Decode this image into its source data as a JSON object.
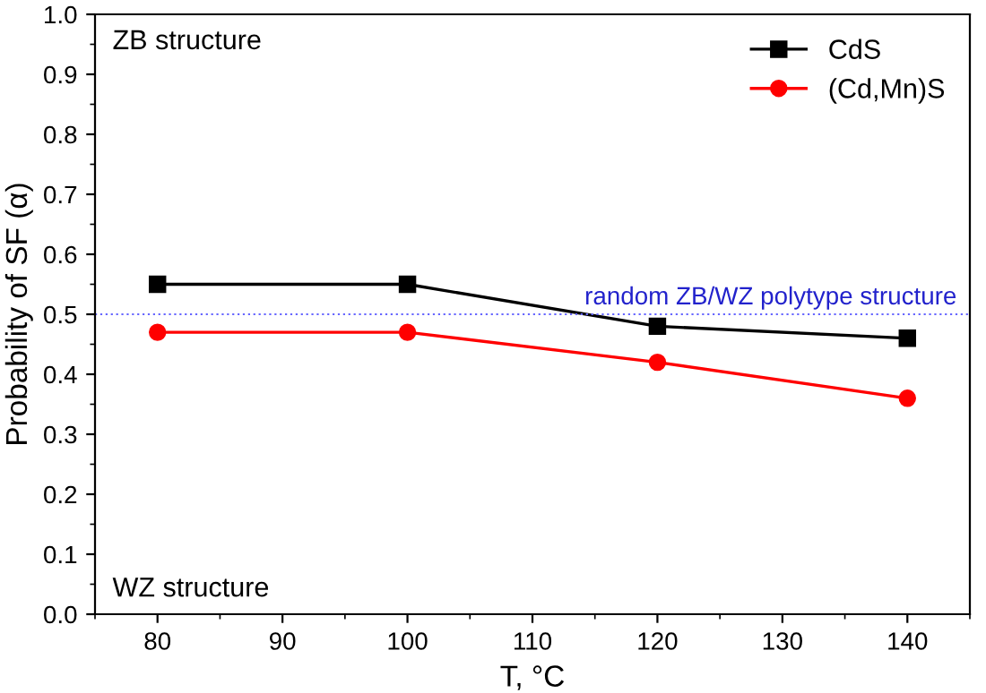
{
  "chart_data": {
    "type": "line",
    "xlabel": "T, °C",
    "ylabel": "Probability of SF (α)",
    "x": [
      80,
      100,
      120,
      140
    ],
    "series": [
      {
        "name": "CdS",
        "color": "#000000",
        "marker": "square",
        "values": [
          0.55,
          0.55,
          0.48,
          0.46
        ]
      },
      {
        "name": "(Cd,Mn)S",
        "color": "#ff0000",
        "marker": "circle",
        "values": [
          0.47,
          0.47,
          0.42,
          0.36
        ]
      }
    ],
    "xlim": [
      75,
      145
    ],
    "xticks": [
      80,
      90,
      100,
      110,
      120,
      130,
      140
    ],
    "ylim": [
      0,
      1
    ],
    "yticks": [
      {
        "value": 0,
        "label": "0.0"
      },
      0.1,
      0.2,
      0.3,
      0.4,
      0.5,
      0.6,
      0.7,
      0.8,
      0.9,
      {
        "value": 1,
        "label": "1.0"
      }
    ],
    "ref_lines": [
      {
        "axis": "y",
        "value": 0.5,
        "label": "random ZB/WZ polytype structure",
        "color": "#6666ff",
        "line_style": "dotted"
      }
    ],
    "annotations": [
      "ZB structure",
      "WZ structure"
    ],
    "legend": "top right",
    "grid": false,
    "line_style": "solid"
  }
}
